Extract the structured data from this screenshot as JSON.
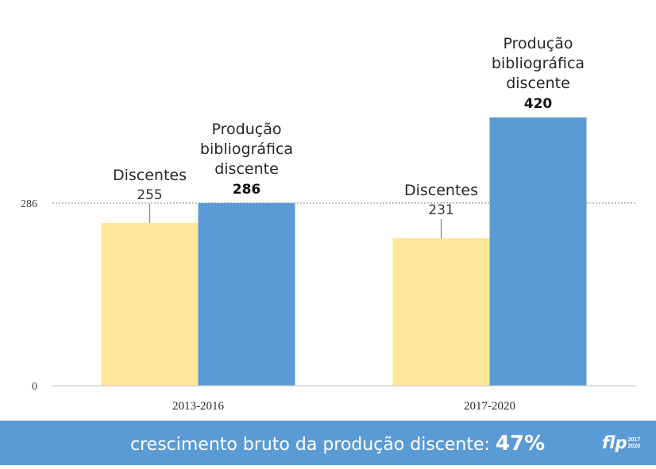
{
  "chart_data": {
    "type": "bar",
    "categories": [
      "2013-2016",
      "2017-2020"
    ],
    "series": [
      {
        "labels": [
          "Discentes",
          "Discentes"
        ],
        "values": [
          255,
          231
        ],
        "color": "#ffe699"
      },
      {
        "labels": [
          "Produção bibliográfica discente",
          "Produção bibliográfica discente"
        ],
        "values": [
          286,
          420
        ],
        "color": "#5b9bd5"
      }
    ],
    "yticks": [
      0,
      286
    ],
    "reference_line": 286,
    "ylim": [
      0,
      520
    ],
    "grid": false
  },
  "banner": {
    "text": "crescimento bruto da produção discente:",
    "value": "47%",
    "logo": "flp",
    "logo_years": [
      "2017",
      "2020"
    ]
  }
}
